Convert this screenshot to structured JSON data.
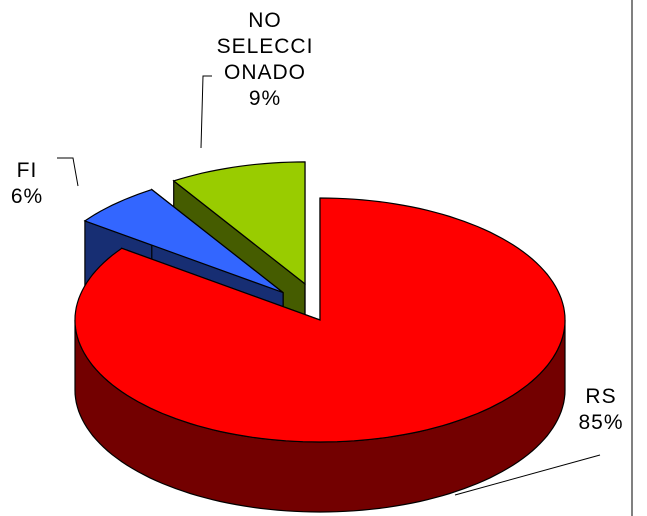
{
  "chart_data": {
    "type": "pie",
    "categories": [
      "RS",
      "FI",
      "NO SELECCIONADO"
    ],
    "values": [
      85,
      6,
      9
    ],
    "value_labels": [
      "85%",
      "6%",
      "9%"
    ],
    "colors": [
      "#ff0000",
      "#3366ff",
      "#99cc00"
    ],
    "exploded": [
      false,
      true,
      true
    ]
  }
}
